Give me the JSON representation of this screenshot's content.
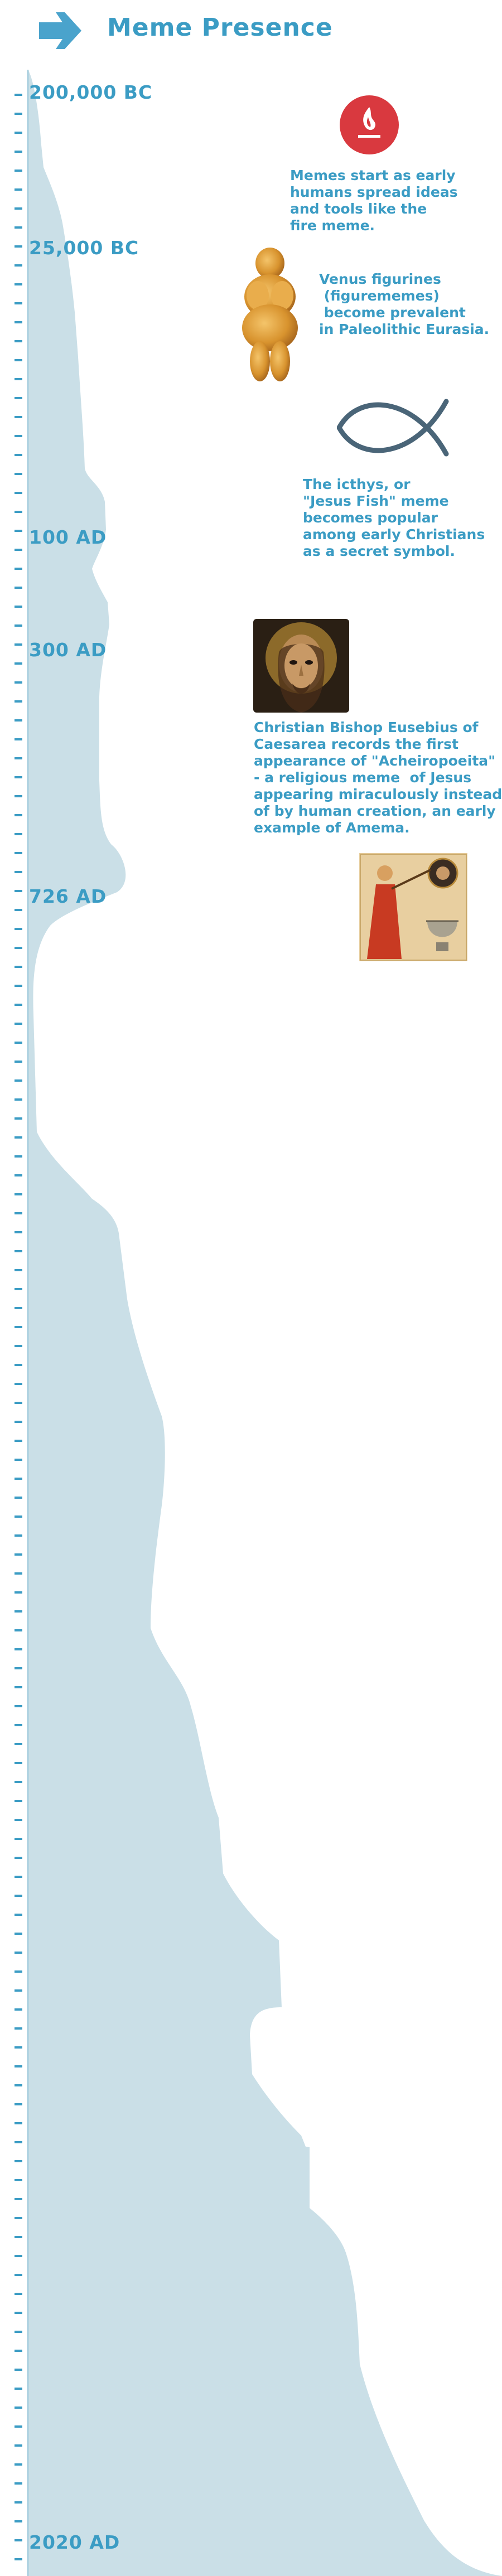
{
  "header": {
    "title": "Meme Presence",
    "arrow_icon": "arrow-right-icon"
  },
  "eras": [
    {
      "label": "200,000 BC"
    },
    {
      "label": "25,000 BC"
    },
    {
      "label": "100 AD"
    },
    {
      "label": "300 AD"
    },
    {
      "label": "726 AD"
    },
    {
      "label": "2020 AD"
    }
  ],
  "events": [
    {
      "icon": "fire-badge-icon",
      "lines": [
        "Memes start as early",
        "humans spread ideas",
        "and tools like the",
        "fire meme."
      ]
    },
    {
      "icon": "venus-figurine-image",
      "lines": [
        "Venus figurines",
        " (figurememes)",
        " become prevalent",
        "in Paleolithic Eurasia."
      ]
    },
    {
      "icon": "ichthys-fish-icon",
      "lines": [
        "The icthys, or",
        "\"Jesus Fish\" meme",
        "becomes popular",
        "among early Christians",
        "as a secret symbol."
      ]
    },
    {
      "icon": "jesus-icon-image",
      "lines": [
        "Christian Bishop Eusebius of",
        "Caesarea records the first",
        "appearance of \"Acheiropoeita\"",
        "- a religious meme  of Jesus",
        "appearing miraculously instead",
        "of by human creation, an early",
        "example of Amema."
      ]
    },
    {
      "icon": "iconoclast-manuscript-image",
      "lines": []
    }
  ],
  "colors": {
    "accent": "#3b9cc4",
    "area_fill": "#cadfe7",
    "axis_line": "#a8cfdf",
    "fire_red": "#d9393f",
    "fish_stroke": "#4a6578"
  }
}
